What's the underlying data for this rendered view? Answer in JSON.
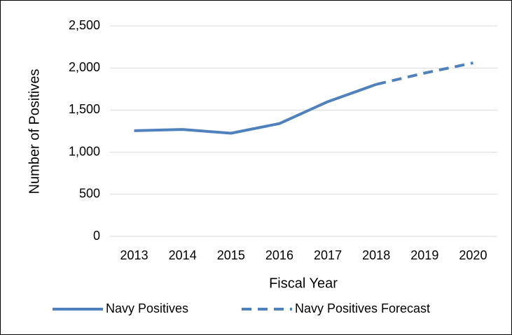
{
  "chart_data": {
    "type": "line",
    "x_label": "Fiscal Year",
    "y_label": "Number of Positives",
    "categories": [
      "2013",
      "2014",
      "2015",
      "2016",
      "2017",
      "2018",
      "2019",
      "2020"
    ],
    "series": [
      {
        "name": "Navy Positives",
        "color": "#4f81bd",
        "line_style": "solid",
        "values": [
          1255,
          1270,
          1225,
          1340,
          1600,
          1805,
          null,
          null
        ]
      },
      {
        "name": "Navy Positives Forecast",
        "color": "#4f81bd",
        "line_style": "dashed",
        "values": [
          null,
          null,
          null,
          null,
          null,
          1805,
          1940,
          2060
        ]
      }
    ],
    "ylim": [
      0,
      2500
    ],
    "yticks": [
      0,
      500,
      {
        "value": 1000,
        "label": "1,000"
      },
      {
        "value": 1500,
        "label": "1,500"
      },
      {
        "value": 2000,
        "label": "2,000"
      },
      {
        "value": 2500,
        "label": "2,500"
      }
    ],
    "grid": true,
    "legend": "bottom"
  }
}
